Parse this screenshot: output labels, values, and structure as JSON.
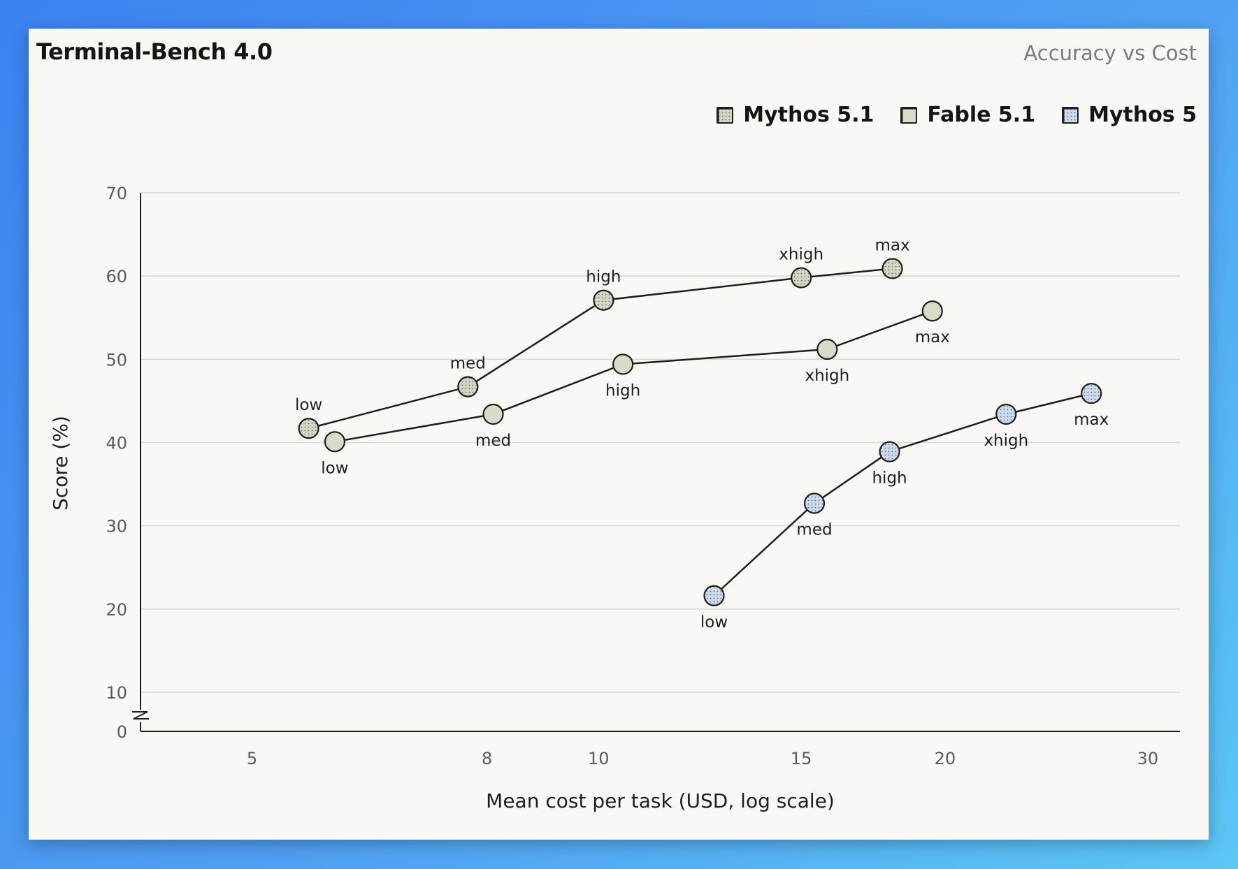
{
  "header": {
    "title": "Terminal-Bench 4.0",
    "subtitle": "Accuracy vs Cost"
  },
  "colors": {
    "mythos51": "#d3d6c2",
    "fable51": "#d6dcc8",
    "mythos5": "#cdd9ec",
    "line": "#1e1e1e",
    "grid": "#d8d8d4"
  },
  "chart_data": {
    "type": "line",
    "xlabel": "Mean cost per task (USD, log scale)",
    "ylabel": "Score (%)",
    "x_scale": "log",
    "xlim": [
      4,
      32
    ],
    "ylim": [
      0,
      70
    ],
    "y_axis_break": true,
    "x_ticks": [
      5,
      8,
      10,
      15,
      20,
      30
    ],
    "y_ticks": [
      0,
      10,
      20,
      30,
      40,
      50,
      60,
      70
    ],
    "grid": "horizontal",
    "legend_position": "top-right",
    "series": [
      {
        "name": "Mythos 5.1",
        "pattern": "dots",
        "color": "#d3d6c2",
        "points": [
          {
            "x": 5.6,
            "y": 41.7,
            "label": "low",
            "label_pos": "above"
          },
          {
            "x": 7.7,
            "y": 46.7,
            "label": "med",
            "label_pos": "above"
          },
          {
            "x": 10.1,
            "y": 57.1,
            "label": "high",
            "label_pos": "above"
          },
          {
            "x": 15.0,
            "y": 59.8,
            "label": "xhigh",
            "label_pos": "above"
          },
          {
            "x": 18.0,
            "y": 60.9,
            "label": "max",
            "label_pos": "above"
          }
        ]
      },
      {
        "name": "Fable 5.1",
        "pattern": "solid",
        "color": "#d6dcc8",
        "points": [
          {
            "x": 5.9,
            "y": 40.1,
            "label": "low",
            "label_pos": "below"
          },
          {
            "x": 8.1,
            "y": 43.4,
            "label": "med",
            "label_pos": "below"
          },
          {
            "x": 10.5,
            "y": 49.4,
            "label": "high",
            "label_pos": "below"
          },
          {
            "x": 15.8,
            "y": 51.2,
            "label": "xhigh",
            "label_pos": "below"
          },
          {
            "x": 19.5,
            "y": 55.8,
            "label": "max",
            "label_pos": "below"
          }
        ]
      },
      {
        "name": "Mythos 5",
        "pattern": "dots",
        "color": "#cdd9ec",
        "points": [
          {
            "x": 12.6,
            "y": 21.6,
            "label": "low",
            "label_pos": "below"
          },
          {
            "x": 15.4,
            "y": 32.7,
            "label": "med",
            "label_pos": "below"
          },
          {
            "x": 17.9,
            "y": 38.9,
            "label": "high",
            "label_pos": "below"
          },
          {
            "x": 22.6,
            "y": 43.4,
            "label": "xhigh",
            "label_pos": "below"
          },
          {
            "x": 26.8,
            "y": 45.9,
            "label": "max",
            "label_pos": "below"
          }
        ]
      }
    ]
  }
}
